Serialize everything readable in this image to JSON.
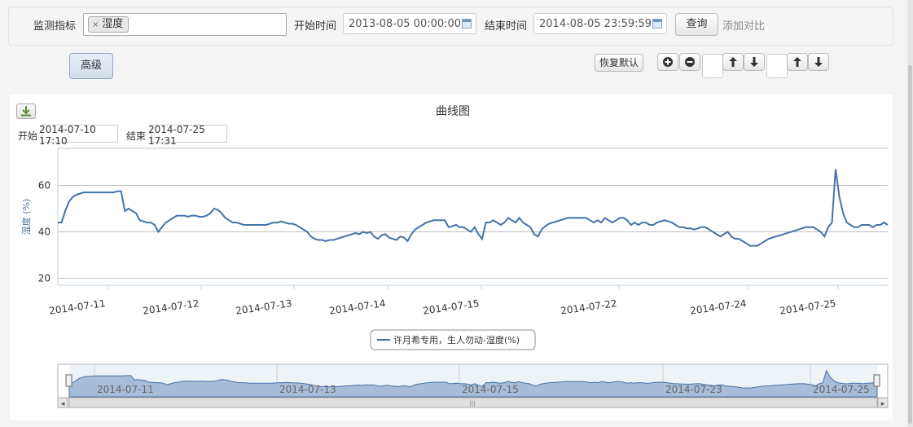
{
  "toolbar": {
    "indicator_label": "监测指标",
    "selected_tag": "湿度",
    "tag_remove_glyph": "×",
    "start_label": "开始时间",
    "start_value": "2013-08-05 00:00:00",
    "end_label": "结束时间",
    "end_value": "2014-08-05 23:59:59",
    "query_button": "查询",
    "compare_link": "添加对比",
    "advanced_button": "高级",
    "reset_button": "恢复默认"
  },
  "range": {
    "start_label": "开始",
    "start_value": "2014-07-10 17:10",
    "end_label": "结束",
    "end_value": "2014-07-25 17:31"
  },
  "colors": {
    "series": "#4572a7",
    "navigator_fill": "#a6bcd9",
    "grid": "#c0c0c0"
  },
  "chart_data": {
    "type": "line",
    "title": "曲线图",
    "ylabel": "湿度 (%)",
    "ylim": [
      17,
      76
    ],
    "yticks": [
      20,
      40,
      60
    ],
    "x_ticks": [
      "2014-07-11",
      "2014-07-12",
      "2014-07-13",
      "2014-07-14",
      "2014-07-15",
      "2014-07-22",
      "2014-07-24",
      "2014-07-25"
    ],
    "legend_position": "bottom",
    "grid": true,
    "series": [
      {
        "name": "许月希专用，生人勿动-湿度(%)",
        "values": [
          44,
          44,
          49,
          53,
          55,
          56,
          56.5,
          57,
          57,
          57,
          57,
          57,
          57,
          57,
          57,
          57,
          57.5,
          57.5,
          49,
          50,
          49,
          48,
          45,
          44.5,
          44,
          44,
          43,
          40,
          42,
          44,
          45,
          46,
          47,
          47,
          47,
          46.5,
          47,
          47,
          46.5,
          46.5,
          47,
          48,
          50,
          49.5,
          48,
          46,
          45,
          44,
          44,
          43.5,
          43,
          43,
          43,
          43,
          43,
          43,
          43,
          43.5,
          44,
          44,
          44.5,
          44,
          43.5,
          43.5,
          43,
          42,
          41,
          40,
          38,
          37,
          36.5,
          36.5,
          36,
          36.5,
          36.5,
          37,
          37.5,
          38,
          38.5,
          39,
          39.5,
          39,
          40,
          39.5,
          40,
          38,
          37,
          38.5,
          39,
          37.5,
          37,
          36.5,
          38,
          37.5,
          36,
          39,
          41,
          42,
          43,
          44,
          44.5,
          45,
          45,
          45,
          45,
          42,
          42.5,
          43,
          42,
          42,
          41,
          40,
          42,
          39,
          37,
          44,
          44,
          45,
          44,
          43,
          44,
          46,
          45,
          44,
          46,
          44,
          43,
          42,
          39,
          38,
          41,
          42.5,
          43.5,
          44,
          44.5,
          45,
          45.5,
          46,
          46,
          46,
          46,
          46,
          46,
          45,
          44,
          45,
          44,
          46,
          45,
          44,
          45,
          46,
          46,
          45,
          43,
          44,
          43,
          44,
          44,
          43,
          43,
          44,
          44.5,
          45,
          44.5,
          44,
          43,
          42,
          42,
          41.5,
          41.5,
          41,
          41.5,
          42,
          42,
          41,
          40,
          39,
          38,
          39,
          40,
          38,
          37,
          37,
          36,
          35,
          34,
          34,
          34,
          35,
          36,
          37,
          37.5,
          38,
          38.5,
          39,
          39.5,
          40,
          40.5,
          41,
          41.5,
          42,
          42,
          42,
          41,
          40,
          38,
          42,
          44,
          67,
          55,
          48,
          44,
          43,
          42,
          42,
          43,
          43,
          43,
          42,
          43,
          43,
          44,
          43
        ]
      }
    ]
  },
  "navigator": {
    "labels": [
      "2014-07-11",
      "2014-07-13",
      "2014-07-15",
      "2014-07-23",
      "2014-07-25"
    ],
    "scroll_left_glyph": "◂",
    "scroll_right_glyph": "▸",
    "grip_glyph": "|||"
  }
}
